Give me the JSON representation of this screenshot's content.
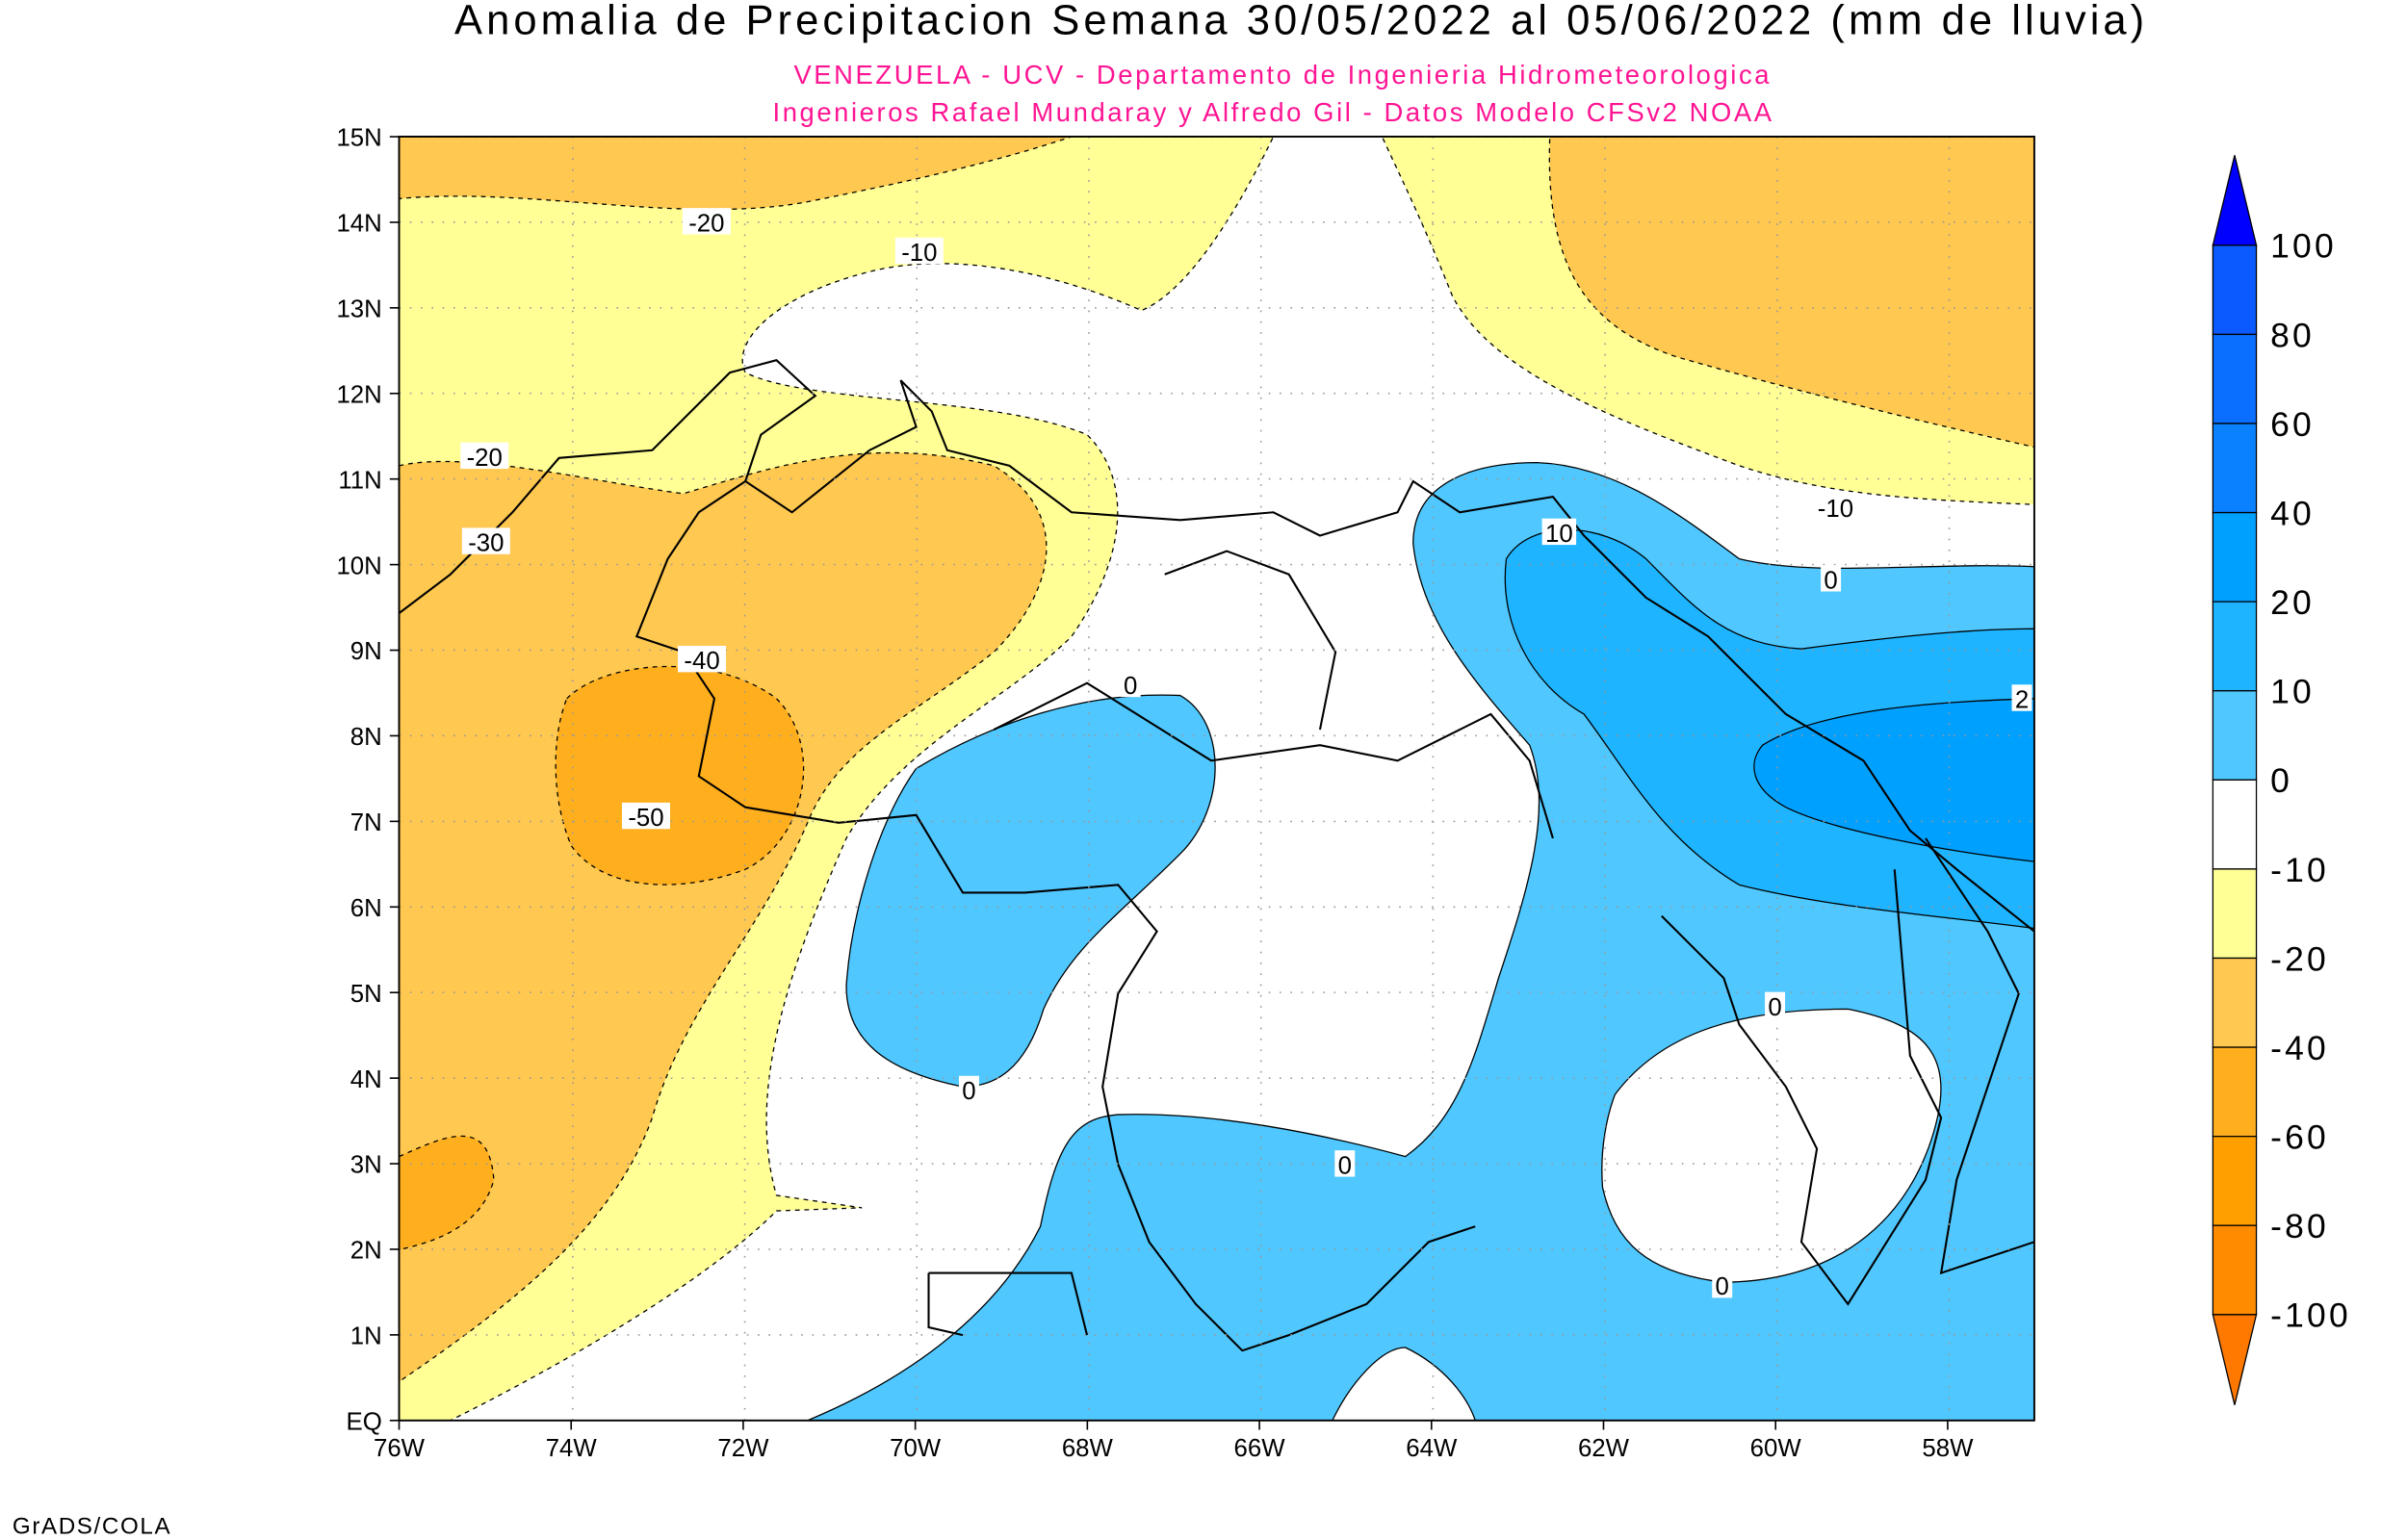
{
  "title": "Anomalia de Precipitacion Semana 30/05/2022 al 05/06/2022 (mm de lluvia)",
  "subtitle_1": "VENEZUELA - UCV - Departamento de Ingenieria Hidrometeorologica",
  "subtitle_2": "Ingenieros Rafael Mundaray y Alfredo Gil - Datos Modelo CFSv2 NOAA",
  "credit": "GrADS/COLA",
  "axes": {
    "lat_labels": [
      "EQ",
      "1N",
      "2N",
      "3N",
      "4N",
      "5N",
      "6N",
      "7N",
      "8N",
      "9N",
      "10N",
      "11N",
      "12N",
      "13N",
      "14N",
      "15N"
    ],
    "lon_labels": [
      "76W",
      "74W",
      "72W",
      "70W",
      "68W",
      "66W",
      "64W",
      "62W",
      "60W",
      "58W"
    ]
  },
  "contour_labels": [
    "-20",
    "-10",
    "-20",
    "-30",
    "-40",
    "-50",
    "0",
    "0",
    "0",
    "10",
    "0",
    "-10",
    "0",
    "0",
    "2"
  ],
  "colorbar": {
    "labels": [
      "100",
      "80",
      "60",
      "40",
      "20",
      "10",
      "0",
      "-10",
      "-20",
      "-40",
      "-60",
      "-80",
      "-100"
    ],
    "colors": [
      "#0000ff",
      "#0a5aff",
      "#0a6eff",
      "#0a82ff",
      "#00a0ff",
      "#1eb4ff",
      "#50c8ff",
      "#ffffff",
      "#ffff96",
      "#ffc850",
      "#ffaf1e",
      "#ffa000",
      "#ff8c00",
      "#ff7800"
    ]
  },
  "colors": {
    "yellow": "#ffff96",
    "orange": "#ffc850",
    "dark_orange": "#ffaf1e",
    "blue0": "#50c8ff",
    "blue10": "#1eb4ff",
    "blue20": "#00a0ff",
    "subtitle": "#ff1493"
  }
}
